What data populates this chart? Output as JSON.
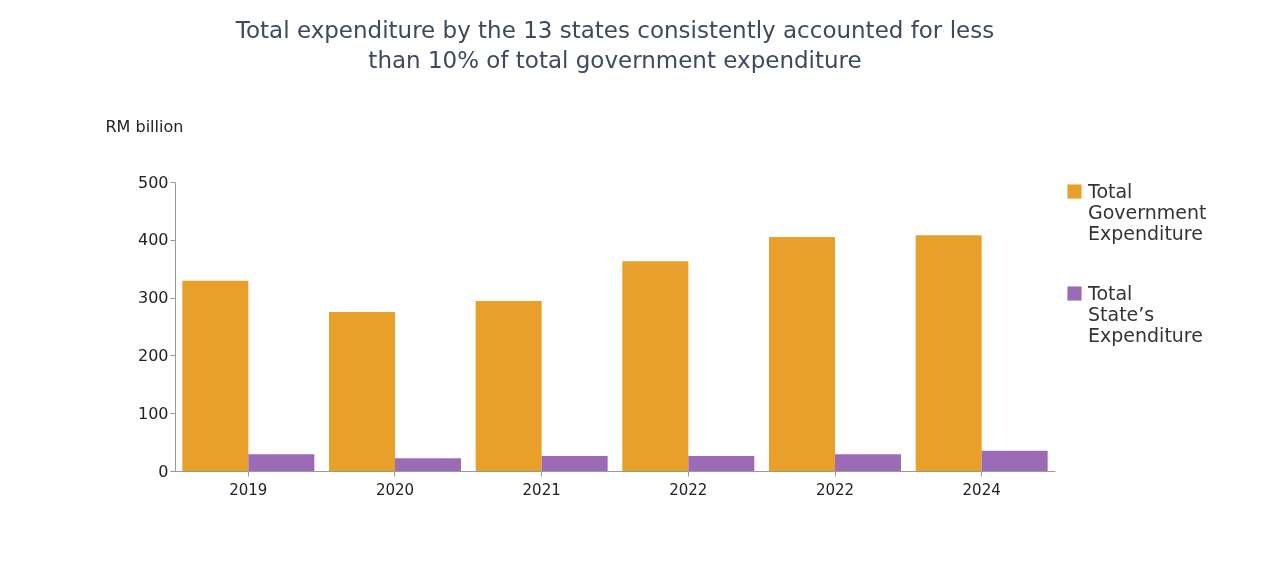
{
  "chart_data": {
    "type": "bar",
    "title": "Total expenditure by the 13 states consistently accounted for less than 10% of total government expenditure",
    "ylabel": "RM  billion",
    "categories": [
      "2019",
      "2020",
      "2021",
      "2022",
      "2022",
      "2024"
    ],
    "series": [
      {
        "name": "Total Government Expenditure",
        "color": "#e8a02a",
        "values": [
          329,
          275,
          294,
          363,
          405,
          408
        ]
      },
      {
        "name": "Total State’s Expenditure",
        "color": "#9b6bb5",
        "values": [
          29,
          22,
          26,
          26,
          29,
          35
        ]
      }
    ],
    "ylim": [
      0,
      500
    ],
    "yticks": [
      0,
      100,
      200,
      300,
      400,
      500
    ],
    "grid": false,
    "legend": "right"
  }
}
